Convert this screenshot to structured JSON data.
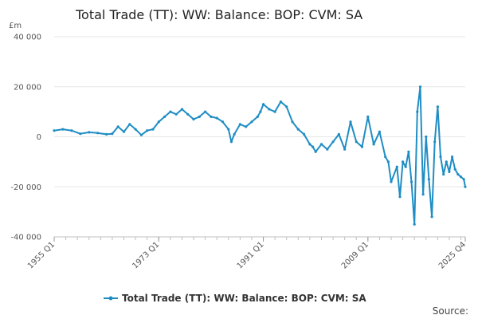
{
  "chart_data": {
    "type": "line",
    "title": "Total Trade (TT): WW: Balance: BOP: CVM: SA",
    "unit_label": "£m",
    "source_label": "Source:",
    "xlabel": "",
    "ylabel": "",
    "ylim": [
      -40000,
      40000
    ],
    "ytick_values": [
      40000,
      20000,
      0,
      -20000,
      -40000
    ],
    "ytick_labels": [
      "40 000",
      "20 000",
      "0",
      "-20 000",
      "-40 000"
    ],
    "xtick_labels": [
      "1955 Q1",
      "1973 Q1",
      "1991 Q1",
      "2009 Q1",
      "2025 Q4"
    ],
    "xtick_values": [
      0,
      72,
      144,
      216,
      283
    ],
    "series": [
      {
        "name": "Total Trade (TT): WW: Balance: BOP: CVM: SA",
        "color": "#1f8dc4",
        "x": [
          0,
          6,
          12,
          18,
          24,
          30,
          36,
          40,
          44,
          48,
          52,
          56,
          60,
          64,
          68,
          72,
          76,
          80,
          84,
          88,
          92,
          96,
          100,
          104,
          108,
          112,
          116,
          120,
          122,
          124,
          128,
          132,
          136,
          140,
          142,
          144,
          148,
          152,
          156,
          160,
          164,
          168,
          172,
          176,
          178,
          180,
          184,
          188,
          192,
          196,
          200,
          204,
          208,
          212,
          216,
          220,
          224,
          228,
          230,
          232,
          236,
          238,
          240,
          242,
          244,
          246,
          248,
          250,
          252,
          254,
          256,
          258,
          260,
          262,
          264,
          266,
          268,
          270,
          272,
          274,
          276,
          278,
          280,
          282,
          283
        ],
        "y": [
          2500,
          3000,
          2500,
          1200,
          1800,
          1500,
          1000,
          1200,
          4000,
          2000,
          5000,
          3000,
          700,
          2500,
          3000,
          6000,
          8000,
          10000,
          9000,
          11000,
          9000,
          7000,
          8000,
          10000,
          8000,
          7500,
          6000,
          3000,
          -2000,
          1000,
          5000,
          4000,
          6000,
          8000,
          10000,
          13000,
          11000,
          10000,
          14000,
          12000,
          6000,
          3000,
          1000,
          -3000,
          -4000,
          -6000,
          -3000,
          -5000,
          -2000,
          1000,
          -5000,
          6000,
          -2000,
          -4000,
          8000,
          -3000,
          2000,
          -8000,
          -10000,
          -18000,
          -12000,
          -24000,
          -10000,
          -12000,
          -6000,
          -18000,
          -35000,
          10000,
          20000,
          -23000,
          0,
          -17000,
          -32000,
          -2000,
          12000,
          -8000,
          -15000,
          -10000,
          -14000,
          -8000,
          -13000,
          -15000,
          -16000,
          -17000,
          -20000
        ]
      }
    ]
  }
}
